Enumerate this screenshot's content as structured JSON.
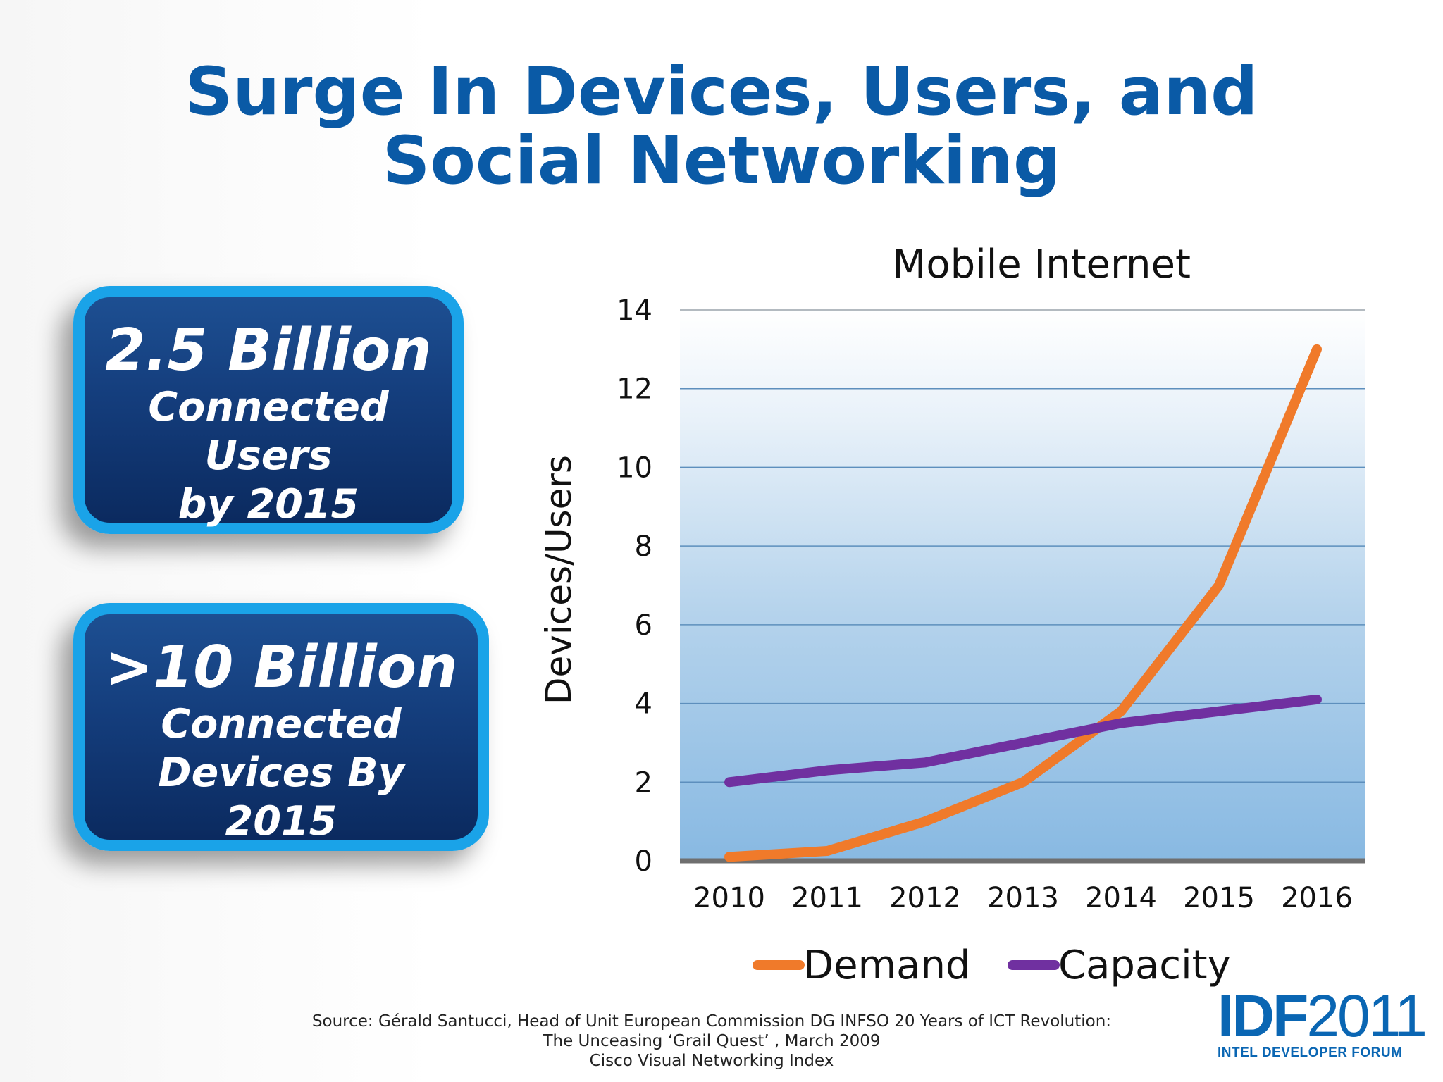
{
  "slide": {
    "title_line1": "Surge In Devices, Users, and",
    "title_line2": "Social Networking"
  },
  "callouts": [
    {
      "headline": "2.5 Billion",
      "lines": [
        "Connected",
        "Users",
        "by 2015"
      ]
    },
    {
      "headline": ">10 Billion",
      "lines": [
        "Connected",
        "Devices By",
        "2015"
      ]
    }
  ],
  "chart_data": {
    "type": "line",
    "title": "Mobile Internet",
    "xlabel": "",
    "ylabel": "Devices/Users",
    "x": [
      "2010",
      "2011",
      "2012",
      "2013",
      "2014",
      "2015",
      "2016"
    ],
    "ylim": [
      0,
      14
    ],
    "yticks": [
      "0",
      "2",
      "4",
      "6",
      "8",
      "10",
      "12",
      "14"
    ],
    "grid": true,
    "legend_position": "bottom",
    "series": [
      {
        "name": "Demand",
        "color": "#f07a2a",
        "values": [
          0.1,
          0.25,
          1.0,
          2.0,
          3.8,
          7.0,
          13.0
        ]
      },
      {
        "name": "Capacity",
        "color": "#7030a0",
        "values": [
          2.0,
          2.3,
          2.5,
          3.0,
          3.5,
          3.8,
          4.1
        ]
      }
    ]
  },
  "footer": {
    "line1": "Source: Gérald Santucci, Head of Unit European Commission DG INFSO 20 Years of ICT Revolution:",
    "line2": "The Unceasing ‘Grail Quest’ , March 2009",
    "line3": "Cisco Visual Networking Index"
  },
  "logo": {
    "idf": "IDF",
    "year": "2011",
    "subtitle": "INTEL DEVELOPER FORUM"
  }
}
